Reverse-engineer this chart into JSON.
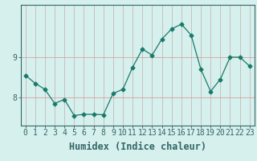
{
  "x": [
    0,
    1,
    2,
    3,
    4,
    5,
    6,
    7,
    8,
    9,
    10,
    11,
    12,
    13,
    14,
    15,
    16,
    17,
    18,
    19,
    20,
    21,
    22,
    23
  ],
  "y": [
    8.55,
    8.35,
    8.2,
    7.85,
    7.95,
    7.55,
    7.58,
    7.58,
    7.57,
    8.1,
    8.2,
    8.75,
    9.2,
    9.05,
    9.45,
    9.7,
    9.82,
    9.55,
    8.7,
    8.15,
    8.45,
    9.0,
    9.0,
    8.78
  ],
  "line_color": "#1a7a6a",
  "marker": "D",
  "marker_size": 2.5,
  "bg_color": "#d6f0ee",
  "grid_color_h": "#d4a0a0",
  "grid_color_v": "#c8b8b8",
  "xlabel": "Humidex (Indice chaleur)",
  "ylim": [
    7.3,
    10.3
  ],
  "xlim": [
    -0.5,
    23.5
  ],
  "yticks": [
    8,
    9
  ],
  "xticks": [
    0,
    1,
    2,
    3,
    4,
    5,
    6,
    7,
    8,
    9,
    10,
    11,
    12,
    13,
    14,
    15,
    16,
    17,
    18,
    19,
    20,
    21,
    22,
    23
  ],
  "tick_label_fontsize": 7.0,
  "xlabel_fontsize": 8.5,
  "axis_color": "#336666",
  "spine_color": "#336666"
}
